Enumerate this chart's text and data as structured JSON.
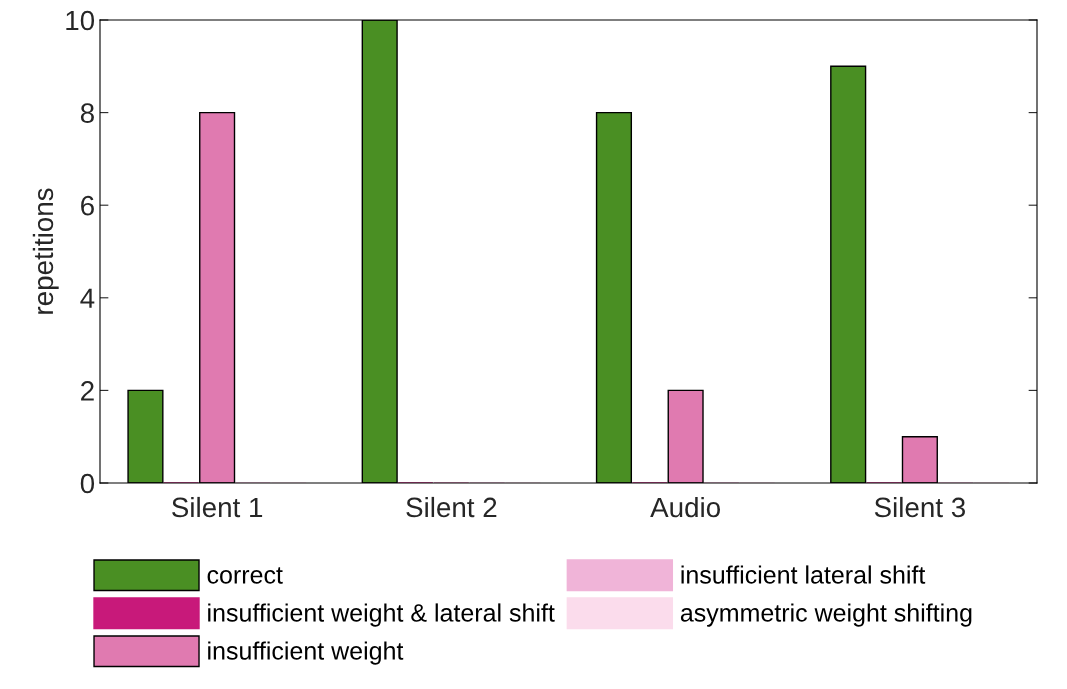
{
  "chart_data": {
    "type": "bar",
    "ylabel": "repetitions",
    "categories": [
      "Silent 1",
      "Silent 2",
      "Audio",
      "Silent 3"
    ],
    "series": [
      {
        "name": "correct",
        "color": "#4a8f23",
        "values": [
          2,
          10,
          8,
          9
        ]
      },
      {
        "name": "insufficient weight & lateral shift",
        "color": "#c8197a",
        "values": [
          0,
          0,
          0,
          0
        ]
      },
      {
        "name": "insufficient weight",
        "color": "#e07ab0",
        "values": [
          8,
          0,
          2,
          1
        ]
      },
      {
        "name": "insufficient lateral shift",
        "color": "#f0b4d8",
        "values": [
          0,
          0,
          0,
          0
        ]
      },
      {
        "name": "asymmetric weight shifting",
        "color": "#fbdcec",
        "values": [
          0,
          0,
          0,
          0
        ]
      }
    ],
    "ylim": [
      0,
      10
    ],
    "yticks": [
      0,
      2,
      4,
      6,
      8,
      10
    ],
    "grid": false,
    "legend": "bottom"
  }
}
